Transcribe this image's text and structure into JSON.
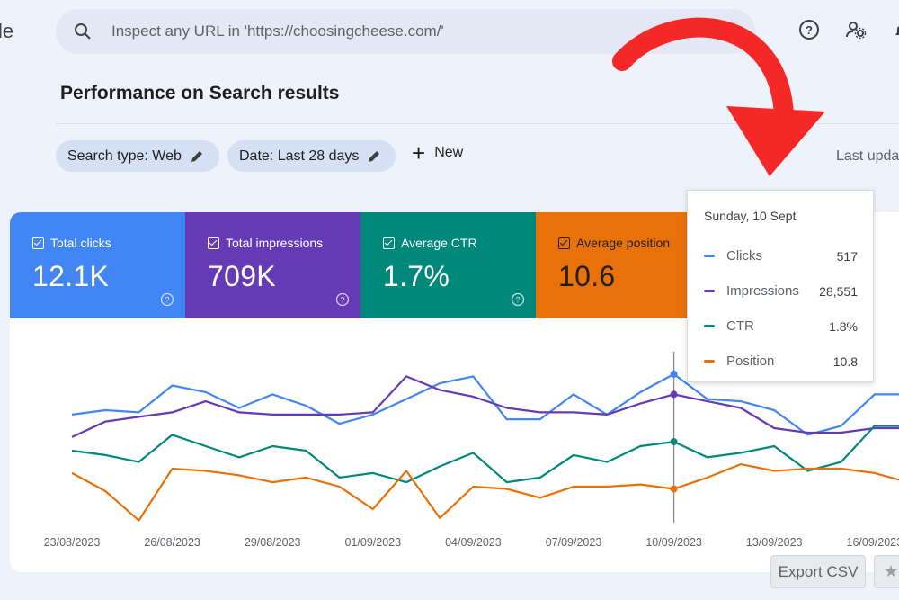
{
  "header": {
    "logo_fragment": "le",
    "search_placeholder": "Inspect any URL in 'https://choosingcheese.com/'"
  },
  "page": {
    "title": "Performance on Search results",
    "filters": [
      {
        "label": "Search type: Web"
      },
      {
        "label": "Date: Last 28 days"
      }
    ],
    "new_label": "New",
    "last_updated": "Last upda"
  },
  "metrics": [
    {
      "label": "Total clicks",
      "value": "12.1K",
      "color": "#4285f4"
    },
    {
      "label": "Total impressions",
      "value": "709K",
      "color": "#6639b5"
    },
    {
      "label": "Average CTR",
      "value": "1.7%",
      "color": "#00897b"
    },
    {
      "label": "Average position",
      "value": "10.6",
      "color": "#e8710a"
    }
  ],
  "tooltip": {
    "date": "Sunday, 10 Sept",
    "rows": [
      {
        "name": "Clicks",
        "value": "517",
        "color": "#4285f4"
      },
      {
        "name": "Impressions",
        "value": "28,551",
        "color": "#6639b5"
      },
      {
        "name": "CTR",
        "value": "1.8%",
        "color": "#00897b"
      },
      {
        "name": "Position",
        "value": "10.8",
        "color": "#e8710a"
      }
    ]
  },
  "actions": {
    "export_label": "Export CSV",
    "star_glyph": "★"
  },
  "annotation": {
    "color": "#f52828",
    "icon": "curved-arrow-icon"
  },
  "chart_data": {
    "type": "line",
    "x": [
      "23/08/2023",
      "24/08/2023",
      "25/08/2023",
      "26/08/2023",
      "27/08/2023",
      "28/08/2023",
      "29/08/2023",
      "30/08/2023",
      "31/08/2023",
      "01/09/2023",
      "02/09/2023",
      "03/09/2023",
      "04/09/2023",
      "05/09/2023",
      "06/09/2023",
      "07/09/2023",
      "08/09/2023",
      "09/09/2023",
      "10/09/2023",
      "11/09/2023",
      "12/09/2023",
      "13/09/2023",
      "14/09/2023",
      "15/09/2023",
      "16/09/2023",
      "17/09/2023"
    ],
    "tick_labels": [
      "23/08/2023",
      "26/08/2023",
      "29/08/2023",
      "01/09/2023",
      "04/09/2023",
      "07/09/2023",
      "10/09/2023",
      "13/09/2023",
      "16/09/2023"
    ],
    "highlight": "10/09/2023",
    "series": [
      {
        "name": "Clicks",
        "color": "#4285f4",
        "level": [
          0.667,
          0.689,
          0.678,
          0.811,
          0.778,
          0.7,
          0.767,
          0.711,
          0.622,
          0.667,
          0.744,
          0.822,
          0.856,
          0.644,
          0.644,
          0.767,
          0.667,
          0.778,
          0.867,
          0.744,
          0.733,
          0.689,
          0.567,
          0.611,
          0.767,
          0.767
        ]
      },
      {
        "name": "Impressions",
        "color": "#6639b5",
        "level": [
          0.556,
          0.633,
          0.656,
          0.678,
          0.733,
          0.678,
          0.667,
          0.667,
          0.667,
          0.678,
          0.856,
          0.789,
          0.756,
          0.7,
          0.678,
          0.678,
          0.667,
          0.722,
          0.767,
          0.733,
          0.7,
          0.6,
          0.578,
          0.578,
          0.6,
          0.6
        ]
      },
      {
        "name": "CTR",
        "color": "#00897b",
        "level": [
          0.489,
          0.467,
          0.433,
          0.567,
          0.511,
          0.456,
          0.511,
          0.489,
          0.356,
          0.378,
          0.333,
          0.411,
          0.478,
          0.333,
          0.356,
          0.467,
          0.433,
          0.511,
          0.533,
          0.456,
          0.478,
          0.511,
          0.389,
          0.433,
          0.611,
          0.611
        ]
      },
      {
        "name": "Position",
        "color": "#e8710a",
        "level": [
          0.378,
          0.289,
          0.144,
          0.4,
          0.389,
          0.367,
          0.333,
          0.356,
          0.311,
          0.2,
          0.389,
          0.156,
          0.311,
          0.3,
          0.256,
          0.311,
          0.311,
          0.322,
          0.3,
          0.356,
          0.422,
          0.389,
          0.4,
          0.4,
          0.378,
          0.333
        ]
      }
    ],
    "level_note_free": true
  }
}
